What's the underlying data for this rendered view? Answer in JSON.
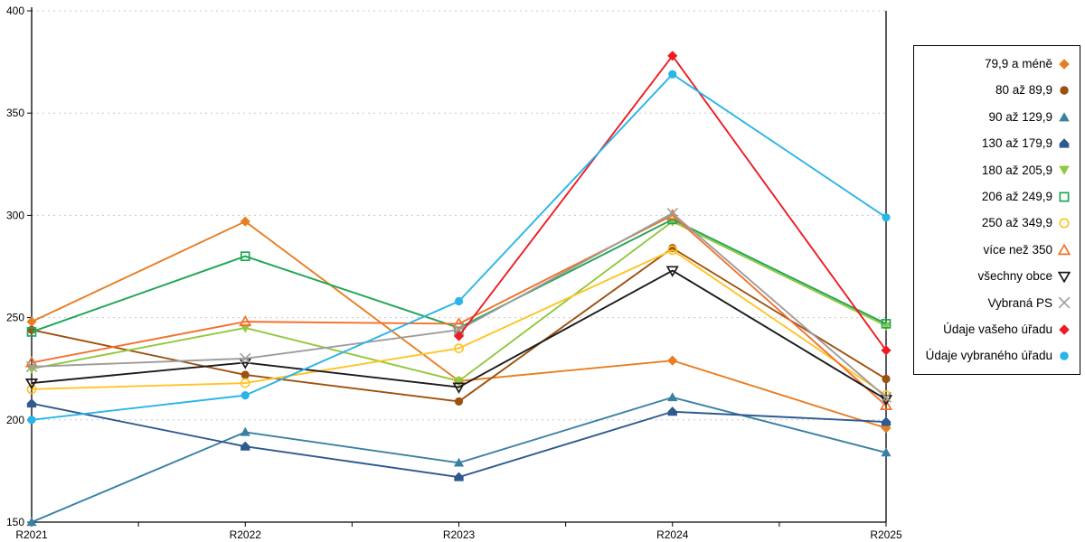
{
  "chart_data": {
    "type": "line",
    "title": "",
    "xlabel": "",
    "ylabel": "",
    "categories": [
      "R2021",
      "R2022",
      "R2023",
      "R2024",
      "R2025"
    ],
    "ylim": [
      150,
      400
    ],
    "ytick_step": 50,
    "grid": "horizontal-dashed",
    "legend_position": "right",
    "series": [
      {
        "name": "79,9 a méně",
        "marker": "diamond",
        "fill": "solid",
        "color": "#E87E23",
        "values": [
          248,
          297,
          219,
          229,
          196
        ]
      },
      {
        "name": "80 až 89,9",
        "marker": "circle",
        "fill": "solid",
        "color": "#9C510E",
        "values": [
          244,
          222,
          209,
          284,
          220
        ]
      },
      {
        "name": "90 až 129,9",
        "marker": "triangle-up",
        "fill": "solid",
        "color": "#3981A3",
        "values": [
          150,
          194,
          179,
          211,
          184
        ]
      },
      {
        "name": "130 až 179,9",
        "marker": "pentagon",
        "fill": "solid",
        "color": "#2E5A8F",
        "values": [
          208,
          187,
          172,
          204,
          199
        ]
      },
      {
        "name": "180 až 205,9",
        "marker": "triangle-down",
        "fill": "solid",
        "color": "#92C83E",
        "values": [
          225,
          245,
          219,
          297,
          246
        ]
      },
      {
        "name": "206 až 249,9",
        "marker": "square",
        "fill": "open",
        "color": "#1FA555",
        "values": [
          243,
          280,
          245,
          298,
          247
        ]
      },
      {
        "name": "250 až 349,9",
        "marker": "circle",
        "fill": "open",
        "color": "#FFC425",
        "values": [
          215,
          218,
          235,
          283,
          212
        ]
      },
      {
        "name": "více než 350",
        "marker": "triangle-up",
        "fill": "open",
        "color": "#F3702B",
        "values": [
          228,
          248,
          247,
          300,
          207
        ]
      },
      {
        "name": "všechny obce",
        "marker": "triangle-down",
        "fill": "open",
        "color": "#1A1A1A",
        "values": [
          218,
          228,
          216,
          273,
          210
        ]
      },
      {
        "name": "Vybraná PS",
        "marker": "x",
        "fill": "open",
        "color": "#9D9D9D",
        "values": [
          226,
          230,
          244,
          301,
          211
        ]
      },
      {
        "name": "Údaje vašeho úřadu",
        "marker": "diamond",
        "fill": "solid",
        "color": "#EE1C23",
        "values": [
          null,
          null,
          241,
          378,
          234
        ]
      },
      {
        "name": "Údaje vybraného úřadu",
        "marker": "circle",
        "fill": "solid",
        "color": "#29B5E8",
        "values": [
          200,
          212,
          258,
          369,
          299
        ]
      }
    ]
  },
  "axes": {
    "y_tick_labels": [
      "150",
      "200",
      "250",
      "300",
      "350",
      "400"
    ],
    "x_tick_labels": [
      "R2021",
      "R2022",
      "R2023",
      "R2024",
      "R2025"
    ]
  },
  "style": {
    "gridline_color": "#C7C7C7",
    "axis_color": "#000000",
    "background": "#FFFFFF"
  }
}
